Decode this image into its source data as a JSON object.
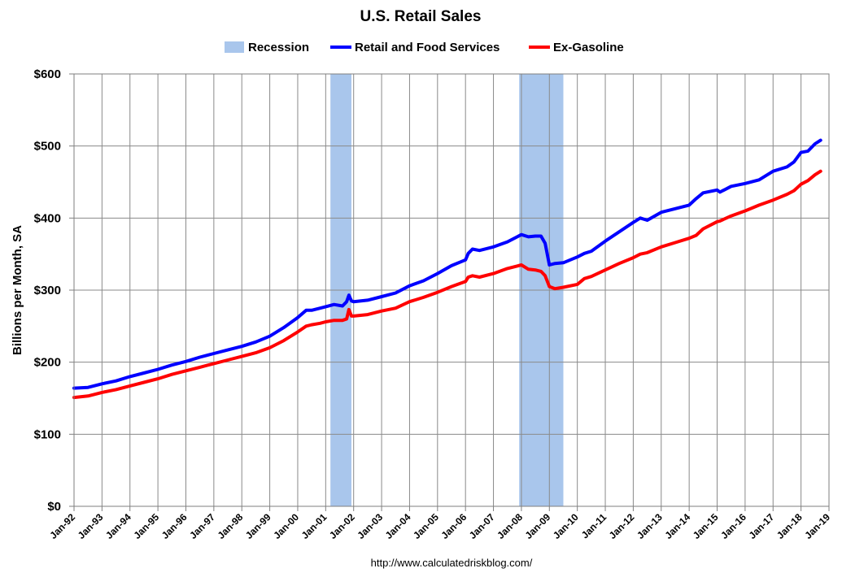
{
  "chart_data": {
    "type": "line",
    "title": "U.S. Retail Sales",
    "ylabel": "Billions per Month, SA",
    "xlabel": "",
    "source": "http://www.calculatedriskblog.com/",
    "ylim": [
      0,
      600
    ],
    "xlim": [
      1992.0,
      2019.0
    ],
    "y_ticks": [
      {
        "value": 0,
        "label": "$0"
      },
      {
        "value": 100,
        "label": "$100"
      },
      {
        "value": 200,
        "label": "$200"
      },
      {
        "value": 300,
        "label": "$300"
      },
      {
        "value": 400,
        "label": "$400"
      },
      {
        "value": 500,
        "label": "$500"
      },
      {
        "value": 600,
        "label": "$600"
      }
    ],
    "x_ticks": [
      {
        "value": 1992,
        "label": "Jan-92"
      },
      {
        "value": 1993,
        "label": "Jan-93"
      },
      {
        "value": 1994,
        "label": "Jan-94"
      },
      {
        "value": 1995,
        "label": "Jan-95"
      },
      {
        "value": 1996,
        "label": "Jan-96"
      },
      {
        "value": 1997,
        "label": "Jan-97"
      },
      {
        "value": 1998,
        "label": "Jan-98"
      },
      {
        "value": 1999,
        "label": "Jan-99"
      },
      {
        "value": 2000,
        "label": "Jan-00"
      },
      {
        "value": 2001,
        "label": "Jan-01"
      },
      {
        "value": 2002,
        "label": "Jan-02"
      },
      {
        "value": 2003,
        "label": "Jan-03"
      },
      {
        "value": 2004,
        "label": "Jan-04"
      },
      {
        "value": 2005,
        "label": "Jan-05"
      },
      {
        "value": 2006,
        "label": "Jan-06"
      },
      {
        "value": 2007,
        "label": "Jan-07"
      },
      {
        "value": 2008,
        "label": "Jan-08"
      },
      {
        "value": 2009,
        "label": "Jan-09"
      },
      {
        "value": 2010,
        "label": "Jan-10"
      },
      {
        "value": 2011,
        "label": "Jan-11"
      },
      {
        "value": 2012,
        "label": "Jan-12"
      },
      {
        "value": 2013,
        "label": "Jan-13"
      },
      {
        "value": 2014,
        "label": "Jan-14"
      },
      {
        "value": 2015,
        "label": "Jan-15"
      },
      {
        "value": 2016,
        "label": "Jan-16"
      },
      {
        "value": 2017,
        "label": "Jan-17"
      },
      {
        "value": 2018,
        "label": "Jan-18"
      },
      {
        "value": 2019,
        "label": "Jan-19"
      }
    ],
    "recessions": [
      {
        "start": 2001.17,
        "end": 2001.92
      },
      {
        "start": 2007.92,
        "end": 2009.5
      }
    ],
    "legend": [
      {
        "name": "Recession",
        "kind": "box",
        "color": "#a9c6ec"
      },
      {
        "name": "Retail and Food Services",
        "kind": "line",
        "color": "#0000ff"
      },
      {
        "name": "Ex-Gasoline",
        "kind": "line",
        "color": "#ff0000"
      }
    ],
    "series": [
      {
        "name": "Retail and Food Services",
        "color": "#0000ff",
        "points": [
          [
            1992.0,
            164
          ],
          [
            1992.5,
            165
          ],
          [
            1993.0,
            170
          ],
          [
            1993.5,
            174
          ],
          [
            1994.0,
            180
          ],
          [
            1994.5,
            185
          ],
          [
            1995.0,
            190
          ],
          [
            1995.5,
            196
          ],
          [
            1996.0,
            201
          ],
          [
            1996.5,
            207
          ],
          [
            1997.0,
            212
          ],
          [
            1997.5,
            217
          ],
          [
            1998.0,
            222
          ],
          [
            1998.5,
            228
          ],
          [
            1999.0,
            236
          ],
          [
            1999.5,
            248
          ],
          [
            2000.0,
            262
          ],
          [
            2000.3,
            272
          ],
          [
            2000.5,
            272
          ],
          [
            2000.8,
            275
          ],
          [
            2001.0,
            277
          ],
          [
            2001.3,
            280
          ],
          [
            2001.6,
            278
          ],
          [
            2001.75,
            284
          ],
          [
            2001.83,
            293
          ],
          [
            2001.92,
            285
          ],
          [
            2002.0,
            284
          ],
          [
            2002.5,
            286
          ],
          [
            2003.0,
            291
          ],
          [
            2003.5,
            296
          ],
          [
            2004.0,
            306
          ],
          [
            2004.5,
            313
          ],
          [
            2005.0,
            323
          ],
          [
            2005.5,
            334
          ],
          [
            2006.0,
            342
          ],
          [
            2006.1,
            351
          ],
          [
            2006.25,
            357
          ],
          [
            2006.5,
            355
          ],
          [
            2007.0,
            360
          ],
          [
            2007.5,
            367
          ],
          [
            2008.0,
            377
          ],
          [
            2008.25,
            374
          ],
          [
            2008.5,
            375
          ],
          [
            2008.7,
            375
          ],
          [
            2008.85,
            365
          ],
          [
            2009.0,
            335
          ],
          [
            2009.2,
            337
          ],
          [
            2009.5,
            338
          ],
          [
            2010.0,
            346
          ],
          [
            2010.25,
            351
          ],
          [
            2010.5,
            354
          ],
          [
            2011.0,
            368
          ],
          [
            2011.5,
            381
          ],
          [
            2012.0,
            394
          ],
          [
            2012.25,
            400
          ],
          [
            2012.5,
            397
          ],
          [
            2013.0,
            408
          ],
          [
            2013.5,
            413
          ],
          [
            2014.0,
            418
          ],
          [
            2014.25,
            427
          ],
          [
            2014.5,
            435
          ],
          [
            2015.0,
            439
          ],
          [
            2015.1,
            436
          ],
          [
            2015.5,
            444
          ],
          [
            2016.0,
            448
          ],
          [
            2016.5,
            453
          ],
          [
            2017.0,
            465
          ],
          [
            2017.5,
            471
          ],
          [
            2017.75,
            478
          ],
          [
            2018.0,
            491
          ],
          [
            2018.25,
            493
          ],
          [
            2018.5,
            503
          ],
          [
            2018.7,
            508
          ]
        ]
      },
      {
        "name": "Ex-Gasoline",
        "color": "#ff0000",
        "points": [
          [
            1992.0,
            151
          ],
          [
            1992.5,
            153
          ],
          [
            1993.0,
            158
          ],
          [
            1993.5,
            162
          ],
          [
            1994.0,
            167
          ],
          [
            1994.5,
            172
          ],
          [
            1995.0,
            177
          ],
          [
            1995.5,
            183
          ],
          [
            1996.0,
            188
          ],
          [
            1996.5,
            193
          ],
          [
            1997.0,
            198
          ],
          [
            1997.5,
            203
          ],
          [
            1998.0,
            208
          ],
          [
            1998.5,
            213
          ],
          [
            1999.0,
            220
          ],
          [
            1999.5,
            230
          ],
          [
            2000.0,
            242
          ],
          [
            2000.3,
            250
          ],
          [
            2000.5,
            252
          ],
          [
            2000.8,
            254
          ],
          [
            2001.0,
            256
          ],
          [
            2001.3,
            258
          ],
          [
            2001.6,
            258
          ],
          [
            2001.75,
            260
          ],
          [
            2001.83,
            273
          ],
          [
            2001.92,
            264
          ],
          [
            2002.0,
            264
          ],
          [
            2002.5,
            266
          ],
          [
            2003.0,
            271
          ],
          [
            2003.5,
            275
          ],
          [
            2004.0,
            284
          ],
          [
            2004.5,
            290
          ],
          [
            2005.0,
            297
          ],
          [
            2005.5,
            305
          ],
          [
            2006.0,
            312
          ],
          [
            2006.1,
            318
          ],
          [
            2006.25,
            320
          ],
          [
            2006.5,
            318
          ],
          [
            2007.0,
            323
          ],
          [
            2007.5,
            330
          ],
          [
            2008.0,
            335
          ],
          [
            2008.25,
            329
          ],
          [
            2008.5,
            328
          ],
          [
            2008.7,
            326
          ],
          [
            2008.85,
            320
          ],
          [
            2009.0,
            305
          ],
          [
            2009.2,
            302
          ],
          [
            2009.5,
            304
          ],
          [
            2010.0,
            308
          ],
          [
            2010.25,
            316
          ],
          [
            2010.5,
            319
          ],
          [
            2011.0,
            328
          ],
          [
            2011.5,
            337
          ],
          [
            2012.0,
            345
          ],
          [
            2012.25,
            350
          ],
          [
            2012.5,
            352
          ],
          [
            2013.0,
            360
          ],
          [
            2013.5,
            366
          ],
          [
            2014.0,
            372
          ],
          [
            2014.25,
            376
          ],
          [
            2014.5,
            385
          ],
          [
            2015.0,
            395
          ],
          [
            2015.1,
            396
          ],
          [
            2015.5,
            403
          ],
          [
            2016.0,
            410
          ],
          [
            2016.5,
            418
          ],
          [
            2017.0,
            425
          ],
          [
            2017.5,
            433
          ],
          [
            2017.75,
            438
          ],
          [
            2018.0,
            447
          ],
          [
            2018.25,
            452
          ],
          [
            2018.5,
            460
          ],
          [
            2018.7,
            465
          ]
        ]
      }
    ]
  }
}
